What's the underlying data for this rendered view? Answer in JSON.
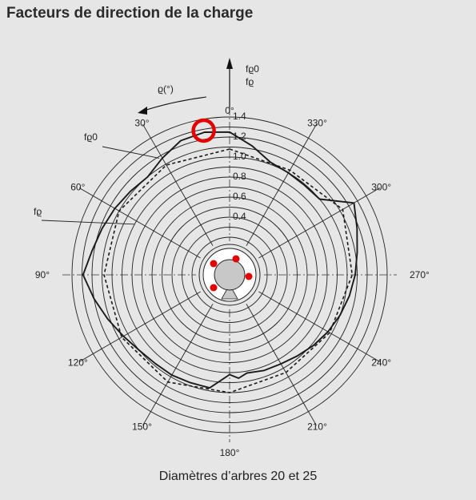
{
  "title": "Facteurs de direction de la charge",
  "caption": "Diamètres d’arbres 20 et 25",
  "chart_data": {
    "type": "polar",
    "radial_range": [
      0,
      1.4
    ],
    "radial_ticks": [
      "0.4",
      "0.6",
      "0.8",
      "1.0",
      "1.2",
      "1.4"
    ],
    "angle_labels": [
      "0°",
      "30°",
      "60°",
      "90°",
      "120°",
      "150°",
      "180°",
      "210°",
      "240°",
      "270°",
      "300°",
      "330°"
    ],
    "angle_direction_label": "ϱ(°)",
    "axis_labels": {
      "f_rho0": "fϱ0",
      "f_rho": "fϱ"
    },
    "series": [
      {
        "name": "fϱ",
        "style": "solid",
        "points": [
          [
            0,
            1.25
          ],
          [
            10,
            1.27
          ],
          [
            20,
            1.25
          ],
          [
            30,
            1.17
          ],
          [
            40,
            1.1
          ],
          [
            50,
            1.12
          ],
          [
            60,
            1.15
          ],
          [
            70,
            1.18
          ],
          [
            80,
            1.22
          ],
          [
            90,
            1.29
          ],
          [
            100,
            1.2
          ],
          [
            110,
            1.12
          ],
          [
            120,
            1.05
          ],
          [
            130,
            1.0
          ],
          [
            140,
            0.98
          ],
          [
            150,
            0.98
          ],
          [
            160,
            0.97
          ],
          [
            170,
            0.97
          ],
          [
            180,
            0.82
          ],
          [
            185,
            0.86
          ],
          [
            190,
            0.82
          ],
          [
            200,
            0.84
          ],
          [
            210,
            0.85
          ],
          [
            220,
            0.88
          ],
          [
            230,
            0.92
          ],
          [
            240,
            0.96
          ],
          [
            250,
            1.0
          ],
          [
            260,
            1.04
          ],
          [
            270,
            1.08
          ],
          [
            280,
            1.12
          ],
          [
            290,
            1.18
          ],
          [
            300,
            1.26
          ],
          [
            310,
            1.0
          ],
          [
            320,
            0.99
          ],
          [
            330,
            1.0
          ],
          [
            340,
            1.02
          ],
          [
            350,
            1.13
          ]
        ]
      },
      {
        "name": "fϱ0",
        "style": "dashed",
        "points": [
          [
            0,
            1.08
          ],
          [
            30,
            1.09
          ],
          [
            60,
            1.1
          ],
          [
            90,
            1.08
          ],
          [
            120,
            1.07
          ],
          [
            150,
            1.06
          ],
          [
            180,
            1.0
          ],
          [
            210,
            0.95
          ],
          [
            240,
            0.98
          ],
          [
            270,
            1.05
          ],
          [
            300,
            1.13
          ],
          [
            330,
            1.03
          ],
          [
            360,
            1.08
          ]
        ]
      }
    ],
    "marker_color": "#e30000"
  }
}
